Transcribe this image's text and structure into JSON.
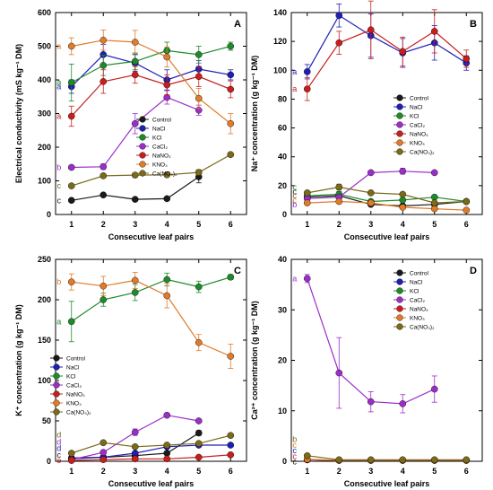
{
  "figure": {
    "colors": {
      "Control": "#1a1a1a",
      "NaCl": "#1f1fb4",
      "KCl": "#1f8a2a",
      "CaCl2": "#9a2fc8",
      "NaNO3": "#c81e1e",
      "KNO3": "#e07b2a",
      "Ca(NO3)2": "#7a6a1a"
    }
  },
  "chart_data": [
    {
      "panel": "A",
      "type": "line",
      "xlabel": "Consecutive leaf pairs",
      "ylabel": "Electrical conductivity (mS kg⁻¹ DM)",
      "ylim": [
        0,
        600
      ],
      "yticks": [
        "0",
        "100",
        "200",
        "300",
        "400",
        "500",
        "600"
      ],
      "x": [
        1,
        2,
        3,
        4,
        5,
        6
      ],
      "xticks": [
        "1",
        "2",
        "3",
        "4",
        "5",
        "6"
      ],
      "legend": [
        "Control",
        "NaCl",
        "KCl",
        "CaCl₂",
        "NaNO₃",
        "KNO₃",
        "Ca(NO₃)₂"
      ],
      "legend_position": "center-right",
      "series": [
        {
          "key": "Control",
          "values": [
            42,
            58,
            45,
            47,
            112,
            null
          ],
          "err": [
            3,
            4,
            4,
            4,
            18,
            0
          ]
        },
        {
          "key": "NaCl",
          "values": [
            380,
            475,
            450,
            400,
            432,
            415
          ],
          "err": [
            20,
            30,
            25,
            30,
            25,
            15
          ]
        },
        {
          "key": "KCl",
          "values": [
            392,
            443,
            455,
            487,
            475,
            500
          ],
          "err": [
            55,
            30,
            25,
            25,
            25,
            12
          ]
        },
        {
          "key": "CaCl2",
          "values": [
            140,
            142,
            270,
            348,
            310,
            null
          ],
          "err": [
            6,
            8,
            30,
            20,
            15,
            0
          ]
        },
        {
          "key": "NaNO3",
          "values": [
            292,
            395,
            415,
            385,
            410,
            372
          ],
          "err": [
            30,
            35,
            25,
            30,
            30,
            25
          ]
        },
        {
          "key": "KNO3",
          "values": [
            500,
            518,
            512,
            468,
            345,
            270
          ],
          "err": [
            25,
            30,
            35,
            30,
            30,
            30
          ]
        },
        {
          "key": "Ca(NO3)2",
          "values": [
            85,
            115,
            117,
            118,
            125,
            178
          ],
          "err": [
            4,
            6,
            6,
            6,
            8,
            6
          ]
        }
      ],
      "sig_letters": [
        {
          "text": "a",
          "y": 500,
          "key": "KNO3"
        },
        {
          "text": "a",
          "y": 393,
          "key": "KCl"
        },
        {
          "text": "a",
          "y": 380,
          "key": "NaCl"
        },
        {
          "text": "a",
          "y": 292,
          "key": "NaNO3"
        },
        {
          "text": "b",
          "y": 140,
          "key": "CaCl2"
        },
        {
          "text": "c",
          "y": 85,
          "key": "Ca(NO3)2"
        },
        {
          "text": "c",
          "y": 42,
          "key": "Control"
        }
      ]
    },
    {
      "panel": "B",
      "type": "line",
      "xlabel": "Consecutive leaf pairs",
      "ylabel": "Na⁺ concentration (g kg⁻¹ DM)",
      "ylim": [
        0,
        140
      ],
      "yticks": [
        "0",
        "20",
        "40",
        "60",
        "80",
        "100",
        "120",
        "140"
      ],
      "x": [
        1,
        2,
        3,
        4,
        5,
        6
      ],
      "xticks": [
        "1",
        "2",
        "3",
        "4",
        "5",
        "6"
      ],
      "legend": [
        "Control",
        "NaCl",
        "KCl",
        "CaCl₂",
        "NaNO₃",
        "KNO₃",
        "Ca(NO₃)₂"
      ],
      "legend_position": "center-right",
      "series": [
        {
          "key": "Control",
          "values": [
            12,
            13,
            7,
            6,
            7,
            9
          ],
          "err": [
            1,
            1,
            1,
            1,
            1,
            1
          ]
        },
        {
          "key": "NaCl",
          "values": [
            99,
            138,
            124,
            112,
            119,
            105
          ],
          "err": [
            5,
            8,
            15,
            10,
            12,
            5
          ]
        },
        {
          "key": "KCl",
          "values": [
            13,
            14,
            9,
            10,
            12,
            9
          ],
          "err": [
            1,
            2,
            1,
            1,
            1,
            1
          ]
        },
        {
          "key": "CaCl2",
          "values": [
            11,
            12,
            29,
            30,
            29,
            null
          ],
          "err": [
            1,
            1,
            1,
            2,
            1,
            0
          ]
        },
        {
          "key": "NaNO3",
          "values": [
            87,
            119,
            128,
            113,
            127,
            108
          ],
          "err": [
            8,
            8,
            20,
            10,
            15,
            6
          ]
        },
        {
          "key": "KNO3",
          "values": [
            8,
            9,
            8,
            5,
            4,
            3
          ],
          "err": [
            1,
            1,
            1,
            1,
            1,
            1
          ]
        },
        {
          "key": "Ca(NO3)2",
          "values": [
            15,
            19,
            15,
            14,
            8,
            9
          ],
          "err": [
            1,
            2,
            1,
            1,
            1,
            1
          ]
        }
      ],
      "sig_letters": [
        {
          "text": "a",
          "y": 99,
          "key": "NaCl"
        },
        {
          "text": "a",
          "y": 87,
          "key": "NaNO3"
        },
        {
          "text": "c",
          "y": 19,
          "key": "KCl"
        },
        {
          "text": "c",
          "y": 16,
          "key": "Control"
        },
        {
          "text": "c",
          "y": 13,
          "key": "Ca(NO3)2"
        },
        {
          "text": "c",
          "y": 10,
          "key": "KNO3"
        },
        {
          "text": "b",
          "y": 7,
          "key": "CaCl2"
        }
      ]
    },
    {
      "panel": "C",
      "type": "line",
      "xlabel": "Consecutive leaf pairs",
      "ylabel": "K⁺ concentration (g kg⁻¹ DM)",
      "ylim": [
        0,
        250
      ],
      "yticks": [
        "0",
        "50",
        "100",
        "150",
        "200",
        "250"
      ],
      "x": [
        1,
        2,
        3,
        4,
        5,
        6
      ],
      "xticks": [
        "1",
        "2",
        "3",
        "4",
        "5",
        "6"
      ],
      "legend": [
        "Control",
        "NaCl",
        "KCl",
        "CaCl₂",
        "NaNO₃",
        "KNO₃",
        "Ca(NO₃)₂"
      ],
      "legend_position": "center-left",
      "series": [
        {
          "key": "Control",
          "values": [
            4,
            5,
            7,
            10,
            35,
            null
          ],
          "err": [
            1,
            1,
            1,
            1,
            3,
            0
          ]
        },
        {
          "key": "NaCl",
          "values": [
            3,
            5,
            10,
            18,
            20,
            20
          ],
          "err": [
            1,
            1,
            1,
            2,
            2,
            2
          ]
        },
        {
          "key": "KCl",
          "values": [
            173,
            200,
            209,
            225,
            216,
            228
          ],
          "err": [
            25,
            8,
            10,
            8,
            7,
            3
          ]
        },
        {
          "key": "CaCl2",
          "values": [
            2,
            11,
            36,
            57,
            50,
            null
          ],
          "err": [
            1,
            1,
            4,
            2,
            2,
            0
          ]
        },
        {
          "key": "NaNO3",
          "values": [
            1,
            2,
            3,
            3,
            5,
            8
          ],
          "err": [
            0.5,
            0.5,
            0.5,
            0.5,
            1,
            1
          ]
        },
        {
          "key": "KNO3",
          "values": [
            222,
            217,
            224,
            205,
            147,
            130
          ],
          "err": [
            10,
            12,
            10,
            15,
            10,
            15
          ]
        },
        {
          "key": "Ca(NO3)2",
          "values": [
            10,
            23,
            18,
            20,
            22,
            32
          ],
          "err": [
            1,
            2,
            2,
            2,
            2,
            2
          ]
        }
      ],
      "sig_letters": [
        {
          "text": "b",
          "y": 222,
          "key": "KNO3"
        },
        {
          "text": "a",
          "y": 173,
          "key": "KCl"
        },
        {
          "text": "d",
          "y": 33,
          "key": "Ca(NO3)2"
        },
        {
          "text": "d",
          "y": 24,
          "key": "CaCl2"
        },
        {
          "text": "d",
          "y": 16,
          "key": "NaCl"
        },
        {
          "text": "c",
          "y": 8,
          "key": "Control"
        },
        {
          "text": "e",
          "y": 1,
          "key": "NaNO3"
        }
      ]
    },
    {
      "panel": "D",
      "type": "line",
      "xlabel": "Consecutive leaf pairs",
      "ylabel": "Ca²⁺ concentration (g kg⁻¹ DM)",
      "ylim": [
        0,
        40
      ],
      "yticks": [
        "0",
        "10",
        "20",
        "30",
        "40"
      ],
      "x": [
        1,
        2,
        3,
        4,
        5,
        6
      ],
      "xticks": [
        "1",
        "2",
        "3",
        "4",
        "5",
        "6"
      ],
      "legend": [
        "Control",
        "NaCl",
        "KCl",
        "CaCl₂",
        "NaNO₃",
        "KNO₃",
        "Ca(NO₃)₂"
      ],
      "legend_position": "top-right",
      "series": [
        {
          "key": "Control",
          "values": [
            0.3,
            0.2,
            0.2,
            0.2,
            0.2,
            0.2
          ],
          "err": [
            0,
            0,
            0,
            0,
            0,
            0
          ]
        },
        {
          "key": "NaCl",
          "values": [
            0.3,
            0.2,
            0.2,
            0.2,
            0.2,
            0.2
          ],
          "err": [
            0,
            0,
            0,
            0,
            0,
            0
          ]
        },
        {
          "key": "KCl",
          "values": [
            0.3,
            0.2,
            0.2,
            0.2,
            0.2,
            0.2
          ],
          "err": [
            0,
            0,
            0,
            0,
            0,
            0
          ]
        },
        {
          "key": "CaCl2",
          "values": [
            36.2,
            17.5,
            11.8,
            11.4,
            14.3,
            null
          ],
          "err": [
            0.8,
            7.0,
            2.0,
            1.8,
            2.6,
            0
          ]
        },
        {
          "key": "NaNO3",
          "values": [
            0.3,
            0.2,
            0.2,
            0.2,
            0.2,
            0.2
          ],
          "err": [
            0,
            0,
            0,
            0,
            0,
            0
          ]
        },
        {
          "key": "KNO3",
          "values": [
            0.4,
            0.2,
            0.2,
            0.2,
            0.2,
            0.2
          ],
          "err": [
            0,
            0,
            0,
            0,
            0,
            0
          ]
        },
        {
          "key": "Ca(NO3)2",
          "values": [
            1.1,
            0.3,
            0.3,
            0.3,
            0.3,
            0.3
          ],
          "err": [
            0.1,
            0.05,
            0.05,
            0.05,
            0.05,
            0.05
          ]
        }
      ],
      "sig_letters": [
        {
          "text": "a",
          "y": 36.2,
          "key": "CaCl2"
        },
        {
          "text": "b",
          "y": 4.4,
          "key": "Ca(NO3)2"
        },
        {
          "text": "c",
          "y": 3.2,
          "key": "KNO3"
        },
        {
          "text": "c",
          "y": 2.1,
          "key": "NaCl"
        },
        {
          "text": "c",
          "y": 1.0,
          "key": "NaNO3"
        },
        {
          "text": "c",
          "y": -0.1,
          "key": "Control"
        }
      ]
    }
  ]
}
